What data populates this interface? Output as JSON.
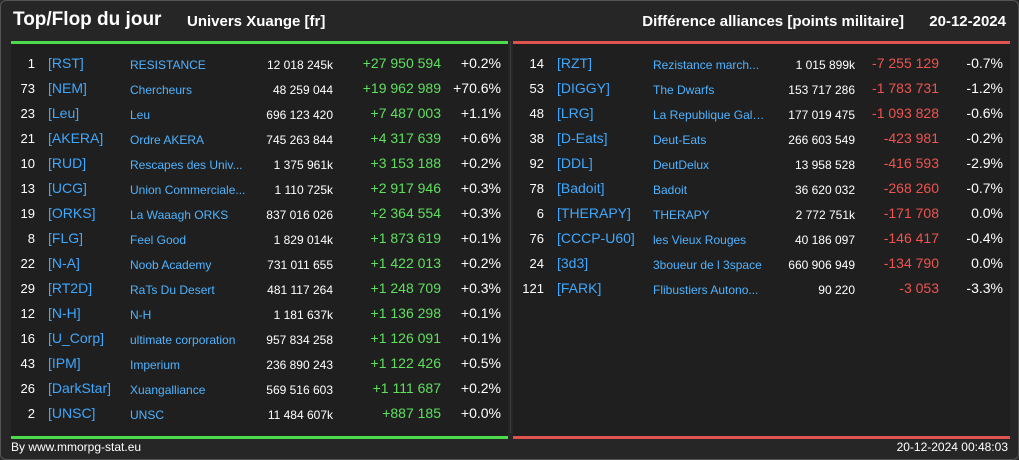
{
  "header": {
    "title": "Top/Flop du jour",
    "universe": "Univers Xuange [fr]",
    "diff_label": "Différence alliances [points militaire]",
    "date": "20-12-2024"
  },
  "colors": {
    "top_accent": "#4ddb4d",
    "flop_accent": "#e0524e",
    "link": "#3fa8ff"
  },
  "top": [
    {
      "rank": "1",
      "tag": "[RST]",
      "name": "RESISTANCE",
      "points": "12 018 245k",
      "delta": "+27 950 594",
      "pct": "+0.2%"
    },
    {
      "rank": "73",
      "tag": "[NEM]",
      "name": "Chercheurs",
      "points": "48 259 044",
      "delta": "+19 962 989",
      "pct": "+70.6%"
    },
    {
      "rank": "23",
      "tag": "[Leu]",
      "name": "Leu",
      "points": "696 123 420",
      "delta": "+7 487 003",
      "pct": "+1.1%"
    },
    {
      "rank": "21",
      "tag": "[AKERA]",
      "name": "Ordre AKERA",
      "points": "745 263 844",
      "delta": "+4 317 639",
      "pct": "+0.6%"
    },
    {
      "rank": "10",
      "tag": "[RUD]",
      "name": "Rescapes des Univ...",
      "points": "1 375 961k",
      "delta": "+3 153 188",
      "pct": "+0.2%"
    },
    {
      "rank": "13",
      "tag": "[UCG]",
      "name": "Union Commerciale...",
      "points": "1 110 725k",
      "delta": "+2 917 946",
      "pct": "+0.3%"
    },
    {
      "rank": "19",
      "tag": "[ORKS]",
      "name": "La Waaagh ORKS",
      "points": "837 016 026",
      "delta": "+2 364 554",
      "pct": "+0.3%"
    },
    {
      "rank": "8",
      "tag": "[FLG]",
      "name": "Feel Good",
      "points": "1 829 014k",
      "delta": "+1 873 619",
      "pct": "+0.1%"
    },
    {
      "rank": "22",
      "tag": "[N-A]",
      "name": "Noob Academy",
      "points": "731 011 655",
      "delta": "+1 422 013",
      "pct": "+0.2%"
    },
    {
      "rank": "29",
      "tag": "[RT2D]",
      "name": "RaTs Du Desert",
      "points": "481 117 264",
      "delta": "+1 248 709",
      "pct": "+0.3%"
    },
    {
      "rank": "12",
      "tag": "[N-H]",
      "name": "N-H",
      "points": "1 181 637k",
      "delta": "+1 136 298",
      "pct": "+0.1%"
    },
    {
      "rank": "16",
      "tag": "[U_Corp]",
      "name": "ultimate corporation",
      "points": "957 834 258",
      "delta": "+1 126 091",
      "pct": "+0.1%"
    },
    {
      "rank": "43",
      "tag": "[IPM]",
      "name": "Imperium",
      "points": "236 890 243",
      "delta": "+1 122 426",
      "pct": "+0.5%"
    },
    {
      "rank": "26",
      "tag": "[DarkStar]",
      "name": "Xuangalliance",
      "points": "569 516 603",
      "delta": "+1 111 687",
      "pct": "+0.2%"
    },
    {
      "rank": "2",
      "tag": "[UNSC]",
      "name": "UNSC",
      "points": "11 484 607k",
      "delta": "+887 185",
      "pct": "+0.0%"
    }
  ],
  "flop": [
    {
      "rank": "14",
      "tag": "[RZT]",
      "name": "Rezistance march...",
      "points": "1 015 899k",
      "delta": "-7 255 129",
      "pct": "-0.7%"
    },
    {
      "rank": "53",
      "tag": "[DIGGY]",
      "name": "The Dwarfs",
      "points": "153 717 286",
      "delta": "-1 783 731",
      "pct": "-1.2%"
    },
    {
      "rank": "48",
      "tag": "[LRG]",
      "name": "La Republique Gala...",
      "points": "177 019 475",
      "delta": "-1 093 828",
      "pct": "-0.6%"
    },
    {
      "rank": "38",
      "tag": "[D-Eats]",
      "name": "Deut-Eats",
      "points": "266 603 549",
      "delta": "-423 981",
      "pct": "-0.2%"
    },
    {
      "rank": "92",
      "tag": "[DDL]",
      "name": "DeutDelux",
      "points": "13 958 528",
      "delta": "-416 593",
      "pct": "-2.9%"
    },
    {
      "rank": "78",
      "tag": "[Badoit]",
      "name": "Badoit",
      "points": "36 620 032",
      "delta": "-268 260",
      "pct": "-0.7%"
    },
    {
      "rank": "6",
      "tag": "[THERAPY]",
      "name": "THERAPY",
      "points": "2 772 751k",
      "delta": "-171 708",
      "pct": "0.0%"
    },
    {
      "rank": "76",
      "tag": "[CCCP-U60]",
      "name": "les Vieux Rouges",
      "points": "40 186 097",
      "delta": "-146 417",
      "pct": "-0.4%"
    },
    {
      "rank": "24",
      "tag": "[3d3]",
      "name": "3boueur de l 3space",
      "points": "660 906 949",
      "delta": "-134 790",
      "pct": "0.0%"
    },
    {
      "rank": "121",
      "tag": "[FARK]",
      "name": "Flibustiers Autono...",
      "points": "90 220",
      "delta": "-3 053",
      "pct": "-3.3%"
    }
  ],
  "footer": {
    "source": "By www.mmorpg-stat.eu",
    "timestamp": "20-12-2024 00:48:03"
  }
}
